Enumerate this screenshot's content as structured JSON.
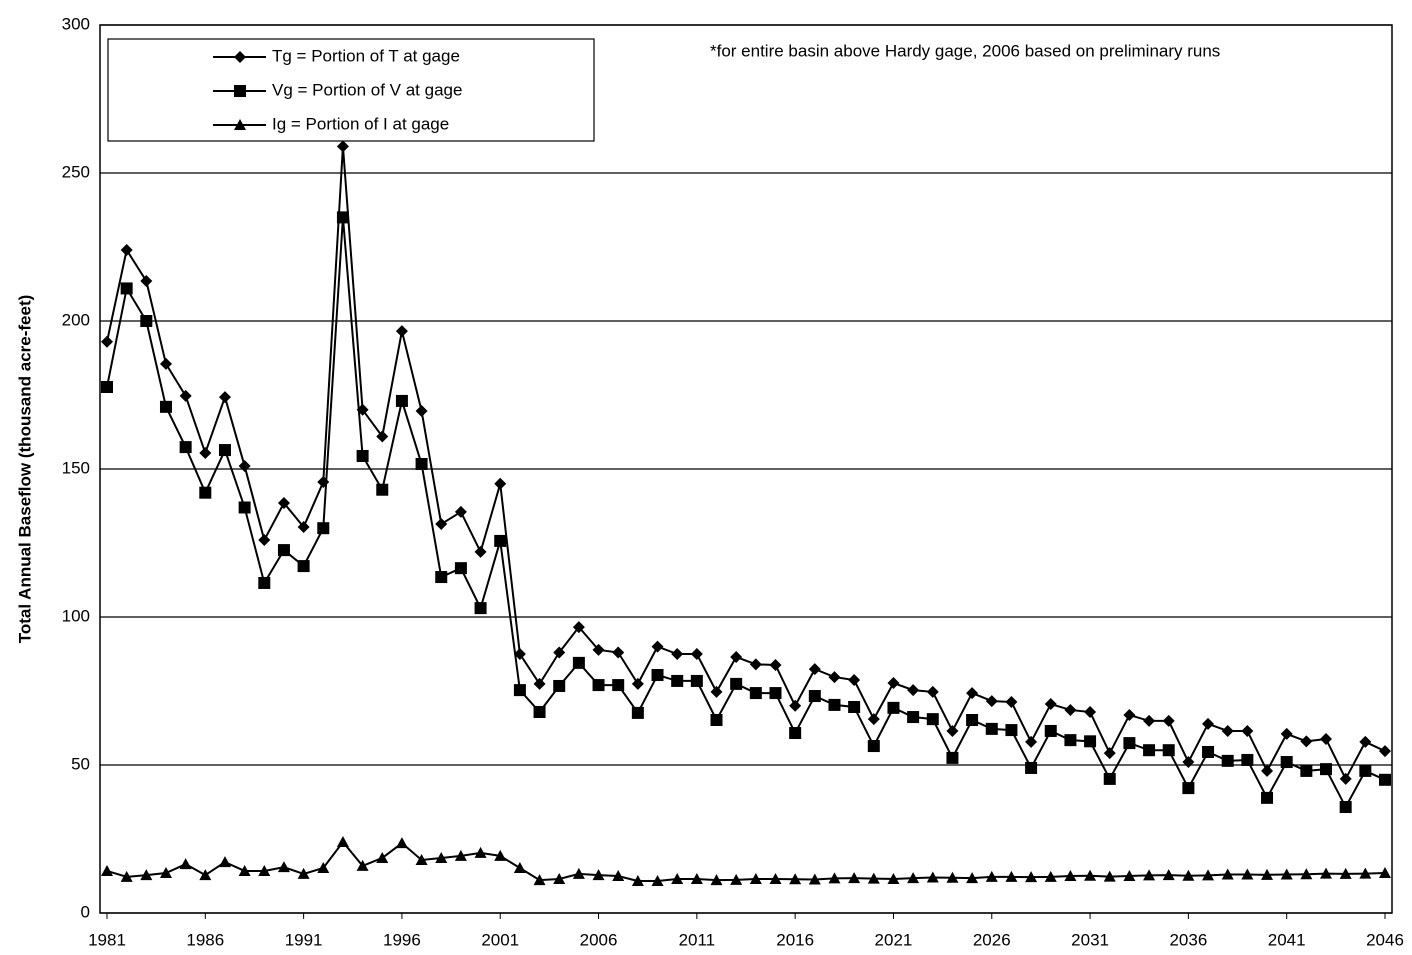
{
  "chart_data": {
    "type": "line",
    "annotation": "*for entire basin above Hardy gage, 2006 based on preliminary runs",
    "y_label": "Total Annual Baseflow (thousand acre-feet)",
    "categories": [
      "1981",
      null,
      null,
      null,
      null,
      "1986",
      null,
      null,
      null,
      null,
      "1991",
      null,
      null,
      null,
      null,
      "1996",
      null,
      null,
      null,
      null,
      "2001",
      null,
      null,
      null,
      null,
      "2006",
      null,
      null,
      null,
      null,
      "2011",
      null,
      null,
      null,
      null,
      "2016",
      null,
      null,
      null,
      null,
      "2021",
      null,
      null,
      null,
      null,
      "2026",
      null,
      null,
      null,
      null,
      "2031",
      null,
      null,
      null,
      null,
      "2036",
      null,
      null,
      null,
      null,
      "2041",
      null,
      null,
      null,
      null,
      "2046"
    ],
    "series": [
      {
        "name": "Tg = Portion of T at gage",
        "color": "#000000",
        "marker": "diamond",
        "values": [
          193,
          224,
          213.5,
          185.5,
          174.7,
          155.4,
          174.3,
          151,
          126,
          138.5,
          130.4,
          145.6,
          259,
          170,
          161,
          196.6,
          169.6,
          131.4,
          135.5,
          122,
          145,
          87.5,
          77.4,
          88,
          96.6,
          88.9,
          88,
          77.4,
          90,
          87.5,
          87.5,
          74.7,
          86.5,
          84,
          83.8,
          70,
          82.4,
          79.7,
          78.7,
          65.5,
          77.7,
          75.3,
          74.7,
          61.5,
          74.3,
          71.6,
          71.3,
          57.8,
          70.6,
          68.6,
          67.9,
          54,
          66.9,
          64.9,
          64.9,
          51,
          63.9,
          61.5,
          61.5,
          48,
          60.5,
          58,
          58.8,
          45.3,
          57.8,
          54.7
        ]
      },
      {
        "name": "Vg = Portion of V at gage",
        "color": "#000000",
        "marker": "square",
        "values": [
          177.7,
          211,
          200,
          171,
          157.4,
          142,
          156.4,
          137,
          111.5,
          122.6,
          117.2,
          130,
          235,
          154.4,
          143,
          173,
          151.7,
          113.5,
          116.5,
          103,
          125.7,
          75.3,
          67.9,
          76.7,
          84.5,
          77,
          77,
          67.6,
          80.4,
          78.4,
          78.4,
          65.2,
          77.4,
          74.3,
          74.3,
          60.8,
          73.3,
          70.3,
          69.6,
          56.4,
          69.3,
          66.2,
          65.5,
          52.4,
          65.2,
          62.2,
          61.8,
          49,
          61.5,
          58.4,
          58,
          45.3,
          57.4,
          55,
          55,
          42.2,
          54.4,
          51.4,
          51.7,
          38.9,
          51,
          48,
          48.6,
          35.8,
          48,
          45
        ]
      },
      {
        "name": "Ig = Portion of I at gage",
        "color": "#000000",
        "marker": "triangle",
        "values": [
          14.2,
          12.2,
          12.8,
          13.5,
          16.5,
          12.8,
          17.2,
          14.2,
          14.2,
          15.5,
          13.2,
          15.2,
          24,
          15.9,
          18.6,
          23.6,
          17.9,
          18.6,
          19.3,
          20.3,
          19.3,
          15.2,
          11.1,
          11.5,
          13.2,
          12.8,
          12.5,
          10.8,
          10.8,
          11.5,
          11.5,
          11.1,
          11.2,
          11.5,
          11.5,
          11.4,
          11.3,
          11.7,
          11.8,
          11.6,
          11.5,
          11.8,
          12,
          11.9,
          11.8,
          12.2,
          12.2,
          12.1,
          12.2,
          12.5,
          12.6,
          12.3,
          12.5,
          12.7,
          12.8,
          12.6,
          12.7,
          13,
          13,
          12.9,
          13,
          13.1,
          13.3,
          13.2,
          13.3,
          13.5
        ]
      }
    ],
    "ylim": [
      0,
      300
    ],
    "yticks": [
      0,
      50,
      100,
      150,
      200,
      250,
      300
    ],
    "grid": true
  }
}
